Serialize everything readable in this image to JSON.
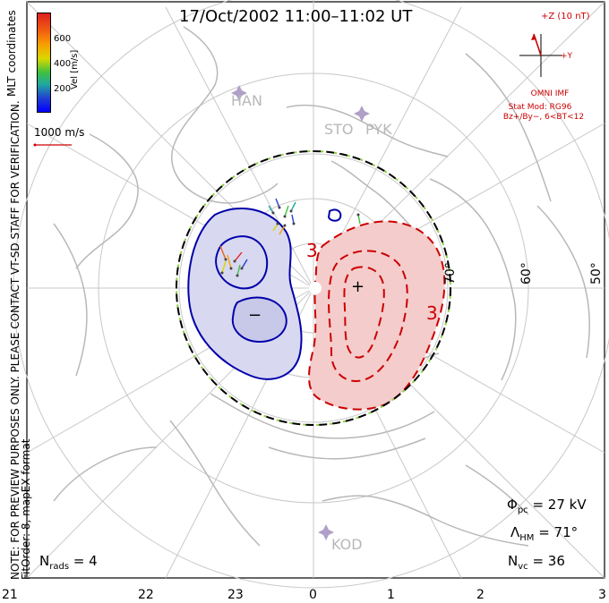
{
  "title": "17/Oct/2002 11:00–11:02 UT",
  "colorbar": {
    "label": "Vel [m/s]",
    "ticks": [
      "600",
      "400",
      "200"
    ]
  },
  "coordinate_label": "MLT coordinates",
  "scale_vector_label": "1000 m/s",
  "notice": "NOTE: FOR PREVIEW PURPOSES ONLY. PLEASE CONTACT VT-SD STAFF FOR VERIFICATION.",
  "fit_info": "FitOrder: 8,  mapEX format",
  "imf": {
    "z_label": "+Z (10 nT)",
    "y_label": "+Y",
    "source": "OMNI IMF",
    "model": "Stat Mod: RG96",
    "condition": "Bz+/By−, 6<BT<12"
  },
  "stations": [
    "HAN",
    "STO",
    "PYK",
    "KOD"
  ],
  "latitude_labels": [
    "70°",
    "60°",
    "50°"
  ],
  "contour_labels": [
    "3",
    "3"
  ],
  "potential_markers": [
    "+",
    "−"
  ],
  "stats": {
    "phi_pc_symbol": "Φ",
    "phi_pc_sub": "pc",
    "phi_pc_value": "= 27 kV",
    "lambda_hm_symbol": "Λ",
    "lambda_hm_sub": "HM",
    "lambda_hm_value": "= 71°",
    "n_vc_symbol": "N",
    "n_vc_sub": "vc",
    "n_vc_value": "= 36",
    "n_rads_symbol": "N",
    "n_rads_sub": "rads",
    "n_rads_value": "= 4"
  },
  "mlt_ticks": [
    "21",
    "22",
    "23",
    "0",
    "1",
    "2",
    "3"
  ],
  "colors": {
    "positive_cell": "#cc0000",
    "negative_cell": "#0000aa",
    "positive_fill": "#f4cccc",
    "negative_fill": "#d8d8f0",
    "grid": "#c8c8c8",
    "coast": "#b8b8b8",
    "hmb_dash": "#90d040"
  }
}
